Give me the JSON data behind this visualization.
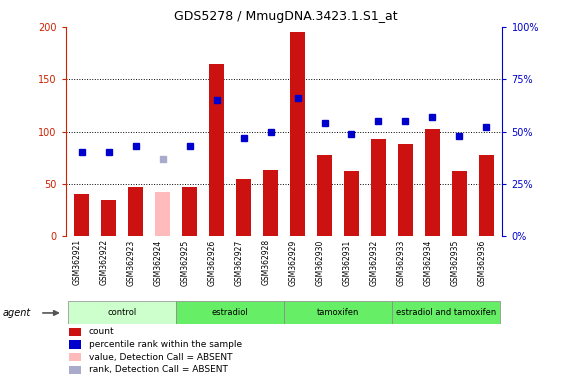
{
  "title": "GDS5278 / MmugDNA.3423.1.S1_at",
  "samples": [
    "GSM362921",
    "GSM362922",
    "GSM362923",
    "GSM362924",
    "GSM362925",
    "GSM362926",
    "GSM362927",
    "GSM362928",
    "GSM362929",
    "GSM362930",
    "GSM362931",
    "GSM362932",
    "GSM362933",
    "GSM362934",
    "GSM362935",
    "GSM362936"
  ],
  "count_values": [
    40,
    35,
    47,
    null,
    47,
    165,
    55,
    63,
    195,
    78,
    62,
    93,
    88,
    102,
    62,
    78
  ],
  "count_absent": [
    null,
    null,
    null,
    42,
    null,
    null,
    null,
    null,
    null,
    null,
    null,
    null,
    null,
    null,
    null,
    null
  ],
  "rank_values": [
    40,
    40,
    43,
    null,
    43,
    65,
    47,
    50,
    66,
    54,
    49,
    55,
    55,
    57,
    48,
    52
  ],
  "rank_absent": [
    null,
    null,
    null,
    37,
    null,
    null,
    null,
    null,
    null,
    null,
    null,
    null,
    null,
    null,
    null,
    null
  ],
  "bar_color": "#cc1111",
  "bar_absent_color": "#ffbbbb",
  "rank_color": "#0000cc",
  "rank_absent_color": "#aaaacc",
  "ylim_left": [
    0,
    200
  ],
  "ylim_right": [
    0,
    100
  ],
  "yticks_left": [
    0,
    50,
    100,
    150,
    200
  ],
  "yticks_right": [
    0,
    25,
    50,
    75,
    100
  ],
  "ytick_labels_left": [
    "0",
    "50",
    "100",
    "150",
    "200"
  ],
  "ytick_labels_right": [
    "0%",
    "25%",
    "50%",
    "75%",
    "100%"
  ],
  "groups": [
    {
      "label": "control",
      "start": 0,
      "end": 3,
      "color": "#ccffcc"
    },
    {
      "label": "estradiol",
      "start": 4,
      "end": 7,
      "color": "#66ee66"
    },
    {
      "label": "tamoxifen",
      "start": 8,
      "end": 11,
      "color": "#66ee66"
    },
    {
      "label": "estradiol and tamoxifen",
      "start": 12,
      "end": 15,
      "color": "#66ee66"
    }
  ],
  "legend_items": [
    {
      "label": "count",
      "color": "#cc1111"
    },
    {
      "label": "percentile rank within the sample",
      "color": "#0000cc"
    },
    {
      "label": "value, Detection Call = ABSENT",
      "color": "#ffbbbb"
    },
    {
      "label": "rank, Detection Call = ABSENT",
      "color": "#aaaacc"
    }
  ],
  "agent_label": "agent",
  "left_axis_color": "#cc2200",
  "right_axis_color": "#0000cc",
  "background_color": "#ffffff",
  "tick_label_area_color": "#cccccc",
  "bar_width": 0.55
}
